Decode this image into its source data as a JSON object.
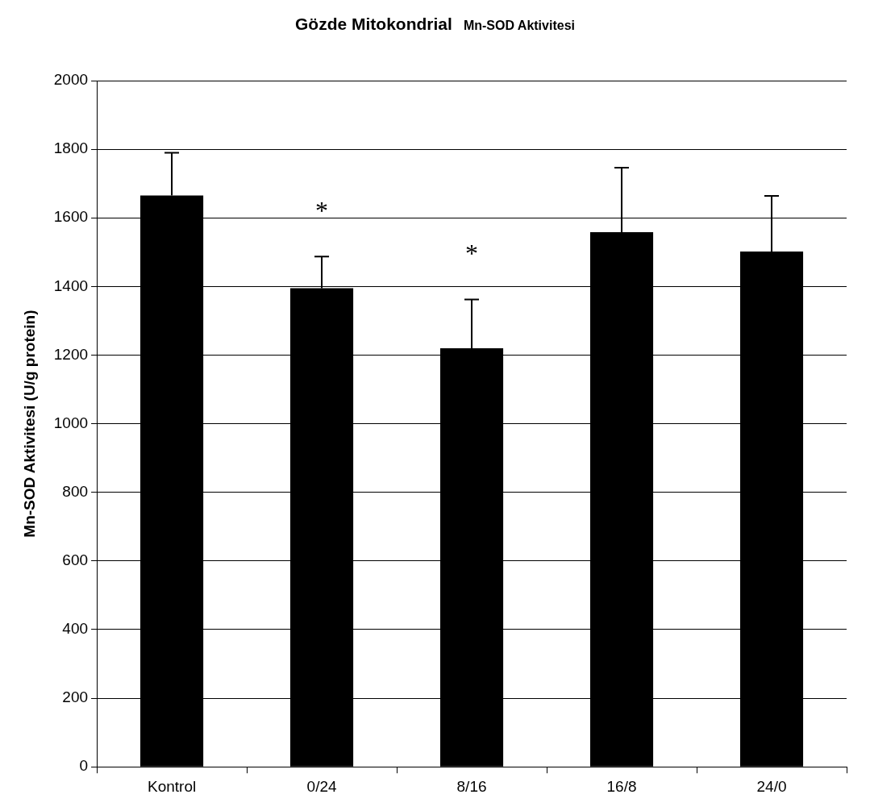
{
  "chart_data": {
    "type": "bar",
    "title": "Gözde Mitokondrial",
    "subtitle": "Mn-SOD Aktivitesi",
    "ylabel": "Mn-SOD Aktivitesi (U/g protein)",
    "categories": [
      "Kontrol",
      "0/24",
      "8/16",
      "16/8",
      "24/0"
    ],
    "values": [
      1665,
      1395,
      1220,
      1558,
      1502
    ],
    "errors": [
      [
        1665,
        1790
      ],
      [
        1395,
        1487
      ],
      [
        1220,
        1362
      ],
      [
        1558,
        1746
      ],
      [
        1502,
        1664
      ]
    ],
    "color": "#000000",
    "ylim": [
      0,
      2000
    ],
    "yticks": [
      0,
      200,
      400,
      600,
      800,
      1000,
      1200,
      1400,
      1600,
      1800,
      2000
    ],
    "grid": "y",
    "value_labels": [
      null,
      "*",
      "*",
      null,
      null
    ]
  }
}
